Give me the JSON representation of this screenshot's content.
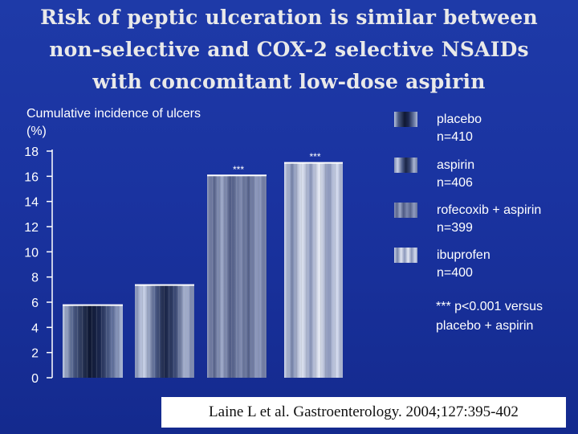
{
  "title_lines": [
    "Risk of peptic ulceration is similar between",
    "non-selective and COX-2 selective NSAIDs",
    "with concomitant low-dose aspirin"
  ],
  "citation": "Laine L et al. Gastroenterology. 2004;127:395-402",
  "colors": {
    "background": "#1a33a0",
    "text": "#ffffff",
    "title": "#e9e9e9"
  },
  "chart_data": {
    "type": "bar",
    "ylabel_lines": [
      "Cumulative incidence of ulcers",
      "(%)"
    ],
    "ylim": [
      0,
      18
    ],
    "yticks": [
      0,
      2,
      4,
      6,
      8,
      10,
      12,
      14,
      16,
      18
    ],
    "grid": false,
    "legend_position": "right",
    "series": [
      {
        "legend": [
          "placebo",
          "n=410"
        ],
        "value": 5.8,
        "annotation": ""
      },
      {
        "legend": [
          "aspirin",
          "n=406"
        ],
        "value": 7.4,
        "annotation": ""
      },
      {
        "legend": [
          "rofecoxib + aspirin",
          "n=399"
        ],
        "value": 16.1,
        "annotation": "***"
      },
      {
        "legend": [
          "ibuprofen",
          "n=400"
        ],
        "value": 17.1,
        "annotation": "***"
      }
    ],
    "footnote_lines": [
      "*** p<0.001 versus",
      "placebo + aspirin"
    ]
  }
}
